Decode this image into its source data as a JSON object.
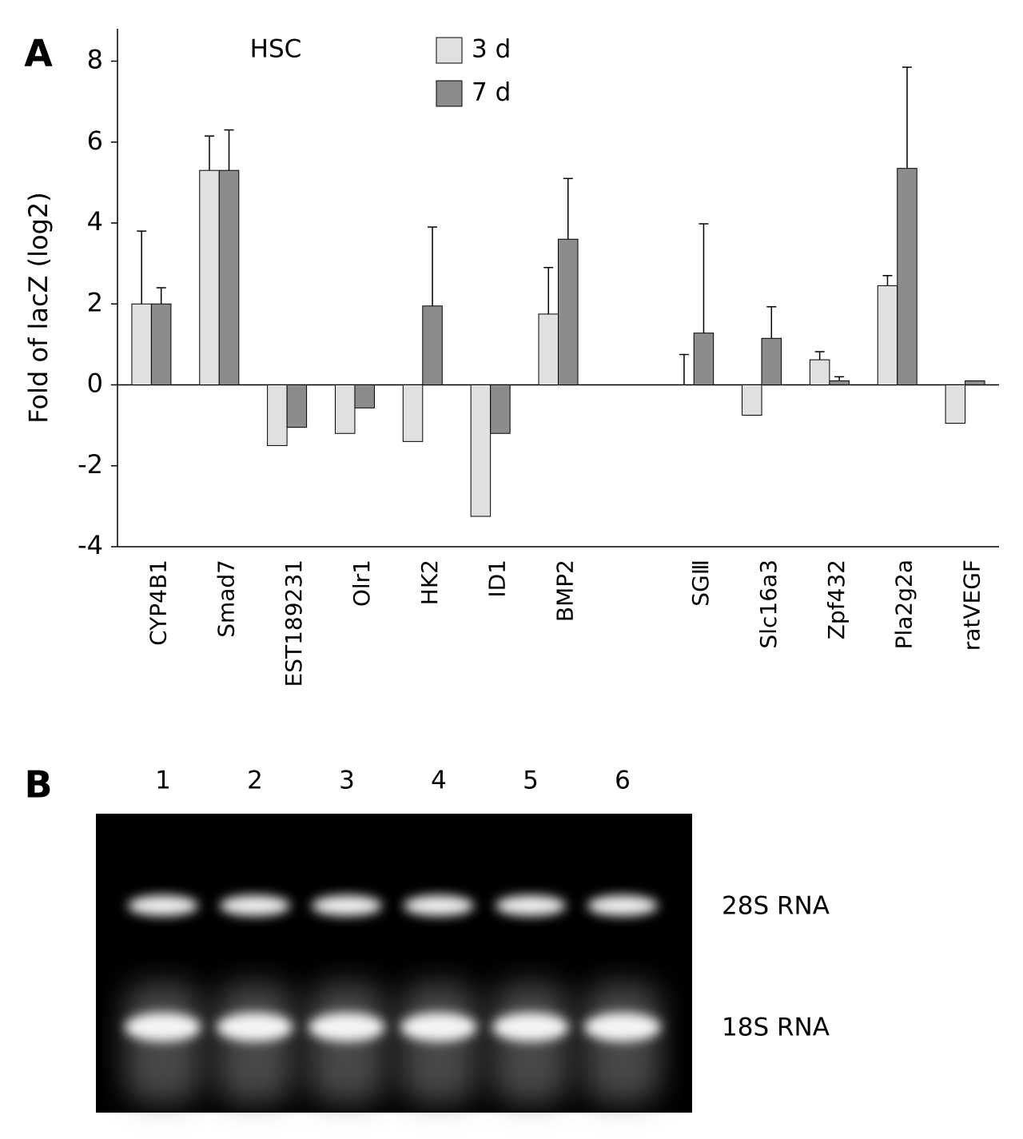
{
  "chart_data": {
    "type": "bar",
    "panel": "A",
    "annotation": "HSC",
    "ylabel": "Fold of lacZ (log2)",
    "categories": [
      "CYP4B1",
      "Smad7",
      "EST189231",
      "Olr1",
      "HK2",
      "ID1",
      "BMP2",
      null,
      "SGⅢ",
      "Slc16a3",
      "Zpf432",
      "Pla2g2a",
      "ratVEGF"
    ],
    "series": [
      {
        "name": "3 d",
        "color": "#e0e0e0",
        "values": [
          2.0,
          5.3,
          -1.5,
          -1.2,
          -1.4,
          -3.25,
          1.75,
          null,
          0,
          -0.75,
          0.62,
          2.45,
          -0.95
        ],
        "errors": [
          1.8,
          0.85,
          null,
          null,
          null,
          null,
          1.15,
          null,
          0.75,
          null,
          0.2,
          0.25,
          null
        ]
      },
      {
        "name": "7 d",
        "color": "#8c8c8c",
        "values": [
          2.0,
          5.3,
          -1.05,
          -0.57,
          1.95,
          -1.2,
          3.6,
          null,
          1.28,
          1.15,
          0.1,
          5.35,
          0.1
        ],
        "errors": [
          0.4,
          1.0,
          null,
          null,
          1.95,
          null,
          1.5,
          null,
          2.7,
          0.78,
          0.1,
          2.5,
          null
        ]
      }
    ],
    "ylim": [
      -4,
      8.8
    ],
    "yticks": [
      -4,
      -2,
      0,
      2,
      4,
      6,
      8
    ],
    "grid": false
  },
  "gel": {
    "panel": "B",
    "lanes": [
      "1",
      "2",
      "3",
      "4",
      "5",
      "6"
    ],
    "bands": [
      "28S RNA",
      "18S RNA"
    ]
  }
}
